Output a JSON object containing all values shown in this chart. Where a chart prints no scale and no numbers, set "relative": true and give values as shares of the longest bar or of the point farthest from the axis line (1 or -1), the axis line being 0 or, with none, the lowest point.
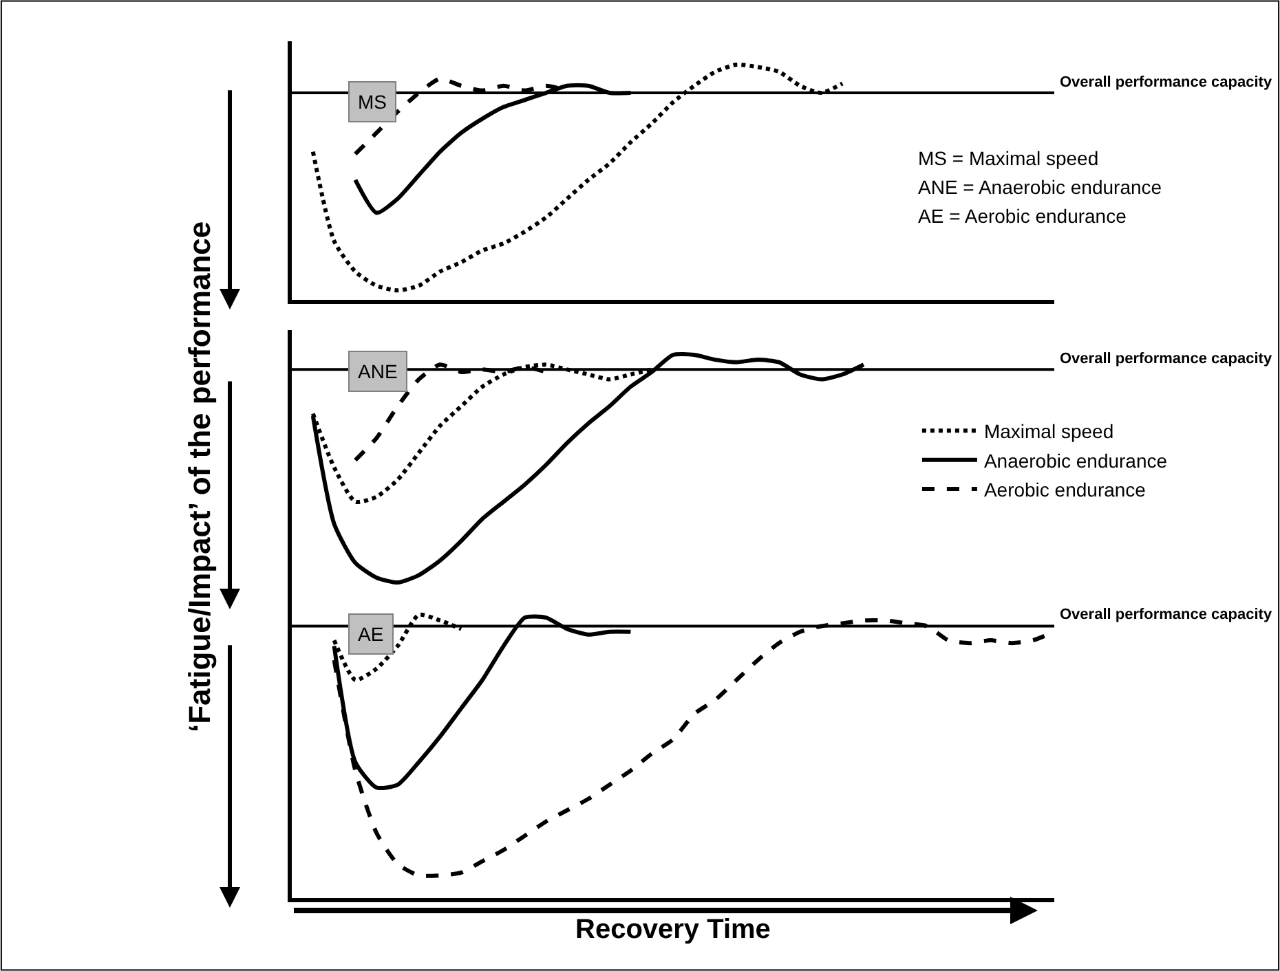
{
  "chart_data": [
    {
      "type": "line",
      "relative": true,
      "marker": "none",
      "categories": [
        null,
        null,
        null,
        null,
        null,
        null,
        null,
        null,
        null,
        null,
        null,
        null,
        null,
        null,
        null,
        null,
        null,
        null,
        null,
        null,
        null,
        null,
        null,
        null,
        null,
        null,
        null,
        null,
        null,
        null,
        null,
        null,
        null,
        null,
        null,
        null,
        null
      ],
      "series": [
        {
          "color": "#000000",
          "line_style": "dotted",
          "values": [
            null,
            0.63,
            0.25,
            0.12,
            0.06,
            0.04,
            0.06,
            0.12,
            0.16,
            0.21,
            0.24,
            0.29,
            0.35,
            0.43,
            0.51,
            0.58,
            0.67,
            0.75,
            0.84,
            0.91,
            0.97,
            1.0,
            0.99,
            0.97,
            0.91,
            0.88,
            0.92,
            null,
            null,
            null,
            null,
            null,
            null,
            null,
            null,
            null,
            null
          ]
        },
        {
          "color": "#000000",
          "line_style": "solid",
          "values": [
            null,
            null,
            null,
            0.51,
            0.37,
            0.43,
            0.53,
            0.63,
            0.71,
            0.77,
            0.82,
            0.85,
            0.88,
            0.91,
            0.91,
            0.88,
            0.88,
            null,
            null,
            null,
            null,
            null,
            null,
            null,
            null,
            null,
            null,
            null,
            null,
            null,
            null,
            null,
            null,
            null,
            null,
            null,
            null
          ]
        },
        {
          "color": "#000000",
          "line_style": "dashed",
          "values": [
            null,
            null,
            null,
            0.62,
            0.71,
            0.8,
            0.88,
            0.94,
            0.91,
            0.89,
            0.91,
            0.89,
            0.91,
            0.89,
            null,
            null,
            null,
            null,
            null,
            null,
            null,
            null,
            null,
            null,
            null,
            null,
            null,
            null,
            null,
            null,
            null,
            null,
            null,
            null,
            null,
            null,
            null
          ]
        }
      ],
      "ref_lines": [
        {
          "axis": "y",
          "value": 0.88,
          "label": "Overall performance capacity"
        }
      ],
      "annotations": [
        "MS",
        "MS = Maximal speed",
        "ANE = Anaerobic endurance",
        "AE = Aerobic endurance"
      ]
    },
    {
      "type": "line",
      "relative": true,
      "marker": "none",
      "legend": "right",
      "ylabel": "‘Fatigue/Impact’ of the performance",
      "categories": [
        null,
        null,
        null,
        null,
        null,
        null,
        null,
        null,
        null,
        null,
        null,
        null,
        null,
        null,
        null,
        null,
        null,
        null,
        null,
        null,
        null,
        null,
        null,
        null,
        null,
        null,
        null,
        null,
        null,
        null,
        null,
        null,
        null,
        null,
        null,
        null,
        null
      ],
      "series": [
        {
          "name": "Maximal speed",
          "color": "#000000",
          "line_style": "dotted",
          "values": [
            null,
            0.76,
            0.54,
            0.4,
            0.42,
            0.49,
            0.6,
            0.71,
            0.79,
            0.87,
            0.92,
            0.95,
            0.96,
            0.94,
            0.92,
            0.9,
            0.92,
            0.94,
            null,
            null,
            null,
            null,
            null,
            null,
            null,
            null,
            null,
            null,
            null,
            null,
            null,
            null,
            null,
            null,
            null,
            null,
            null
          ]
        },
        {
          "name": "Anaerobic endurance",
          "color": "#000000",
          "line_style": "solid",
          "values": [
            null,
            0.75,
            0.31,
            0.15,
            0.09,
            0.07,
            0.1,
            0.16,
            0.24,
            0.33,
            0.4,
            0.47,
            0.55,
            0.64,
            0.72,
            0.79,
            0.87,
            0.93,
            1.0,
            1.0,
            0.98,
            0.97,
            0.98,
            0.97,
            0.92,
            0.9,
            0.92,
            0.96,
            null,
            null,
            null,
            null,
            null,
            null,
            null,
            null,
            null
          ]
        },
        {
          "name": "Aerobic endurance",
          "color": "#000000",
          "line_style": "dashed",
          "values": [
            null,
            null,
            null,
            0.57,
            0.66,
            0.79,
            0.9,
            0.96,
            0.93,
            0.94,
            0.93,
            0.95,
            0.93,
            null,
            null,
            null,
            null,
            null,
            null,
            null,
            null,
            null,
            null,
            null,
            null,
            null,
            null,
            null,
            null,
            null,
            null,
            null,
            null,
            null,
            null,
            null,
            null
          ]
        }
      ],
      "ref_lines": [
        {
          "axis": "y",
          "value": 0.94,
          "label": "Overall performance capacity"
        }
      ],
      "annotations": [
        "ANE"
      ]
    },
    {
      "type": "line",
      "relative": true,
      "marker": "none",
      "xlabel": "Recovery Time",
      "categories": [
        null,
        null,
        null,
        null,
        null,
        null,
        null,
        null,
        null,
        null,
        null,
        null,
        null,
        null,
        null,
        null,
        null,
        null,
        null,
        null,
        null,
        null,
        null,
        null,
        null,
        null,
        null,
        null,
        null,
        null,
        null,
        null,
        null,
        null,
        null,
        null,
        null
      ],
      "series": [
        {
          "color": "#000000",
          "line_style": "dotted",
          "values": [
            null,
            null,
            0.91,
            0.77,
            0.81,
            0.89,
            1.0,
            0.98,
            0.95,
            null,
            null,
            null,
            null,
            null,
            null,
            null,
            null,
            null,
            null,
            null,
            null,
            null,
            null,
            null,
            null,
            null,
            null,
            null,
            null,
            null,
            null,
            null,
            null,
            null,
            null,
            null,
            null
          ]
        },
        {
          "color": "#000000",
          "line_style": "solid",
          "values": [
            null,
            null,
            0.89,
            0.48,
            0.39,
            0.4,
            0.48,
            0.57,
            0.67,
            0.77,
            0.89,
            0.99,
            0.99,
            0.95,
            0.93,
            0.94,
            0.94,
            null,
            null,
            null,
            null,
            null,
            null,
            null,
            null,
            null,
            null,
            null,
            null,
            null,
            null,
            null,
            null,
            null,
            null,
            null,
            null
          ]
        },
        {
          "color": "#000000",
          "line_style": "dashed",
          "values": [
            null,
            null,
            0.84,
            0.45,
            0.23,
            0.12,
            0.08,
            0.08,
            0.09,
            0.13,
            0.17,
            0.22,
            0.27,
            0.31,
            0.35,
            0.4,
            0.45,
            0.51,
            0.56,
            0.65,
            0.7,
            0.77,
            0.84,
            0.9,
            0.94,
            0.96,
            0.97,
            0.98,
            0.98,
            0.97,
            0.96,
            0.91,
            0.9,
            0.91,
            0.9,
            0.91,
            0.94
          ]
        }
      ],
      "ref_lines": [
        {
          "axis": "y",
          "value": 0.96,
          "label": "Overall performance capacity"
        }
      ],
      "annotations": [
        "AE"
      ]
    }
  ]
}
